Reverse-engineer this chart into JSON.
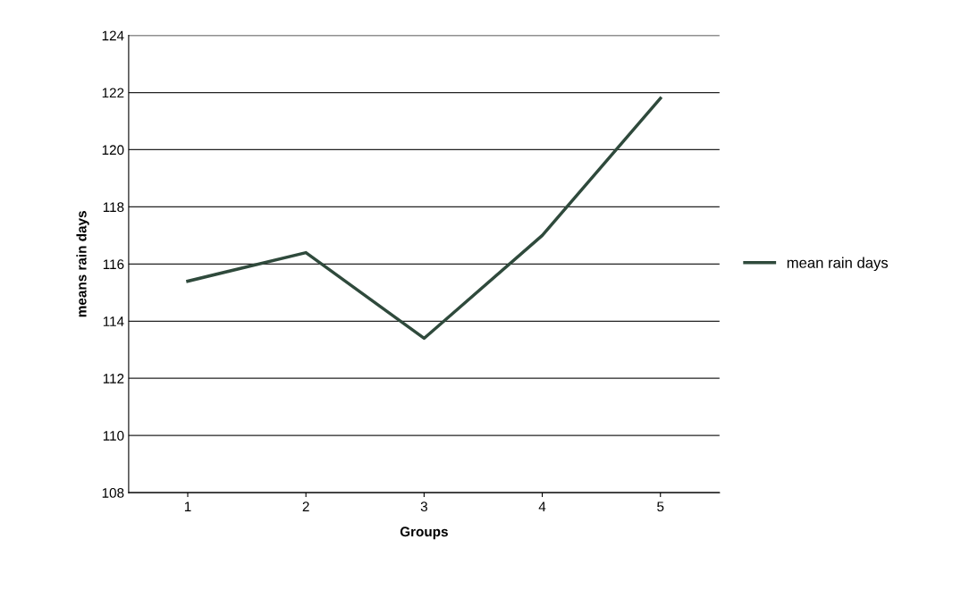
{
  "chart_data": {
    "type": "line",
    "xlabel": "Groups",
    "ylabel": "means rain days",
    "categories": [
      "1",
      "2",
      "3",
      "4",
      "5"
    ],
    "series": [
      {
        "name": "mean rain days",
        "color": "#2f4a3c",
        "values": [
          115.4,
          116.4,
          113.4,
          117.0,
          121.8
        ]
      }
    ],
    "ylim": [
      108,
      124
    ],
    "yticks": [
      108,
      110,
      112,
      114,
      116,
      118,
      120,
      122,
      124
    ],
    "grid": "y",
    "legend": "right",
    "marker": "none",
    "line_style": "solid"
  }
}
